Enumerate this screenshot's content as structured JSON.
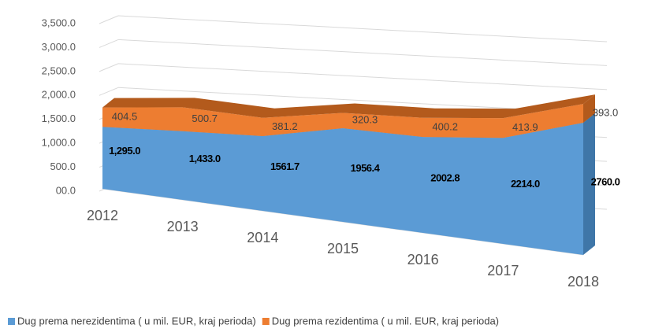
{
  "chart_data": {
    "type": "area3d",
    "categories": [
      "2012",
      "2013",
      "2014",
      "2015",
      "2016",
      "2017",
      "2018"
    ],
    "series": [
      {
        "name": "Dug prema nerezidentima ( u mil. EUR, kraj perioda)",
        "color": "#5b9bd5",
        "values": [
          1295.0,
          1433.0,
          1561.7,
          1956.4,
          2002.8,
          2214.0,
          2760.0
        ],
        "value_labels": [
          "1,295.0",
          "1,433.0",
          "1561.7",
          "1956.4",
          "2002.8",
          "2214.0",
          "2760.0"
        ]
      },
      {
        "name": "Dug prema rezidentima ( u mil. EUR, kraj perioda)",
        "color": "#ed7d31",
        "values": [
          404.5,
          500.7,
          381.2,
          320.3,
          400.2,
          413.9,
          393.0
        ],
        "value_labels": [
          "404.5",
          "500.7",
          "381.2",
          "320.3",
          "400.2",
          "413.9",
          "393.0"
        ]
      }
    ],
    "stacked": true,
    "ylim": [
      0,
      3500
    ],
    "yticks": [
      {
        "value": 0,
        "label": "00.0"
      },
      {
        "value": 500,
        "label": "500.0"
      },
      {
        "value": 1000,
        "label": "1,000.0"
      },
      {
        "value": 1500,
        "label": "1,500.0"
      },
      {
        "value": 2000,
        "label": "2,000.0"
      },
      {
        "value": 2500,
        "label": "2,500.0"
      },
      {
        "value": 3000,
        "label": "3,000.0"
      },
      {
        "value": 3500,
        "label": "3,500.0"
      }
    ],
    "grid": true,
    "legend": "bottom"
  }
}
